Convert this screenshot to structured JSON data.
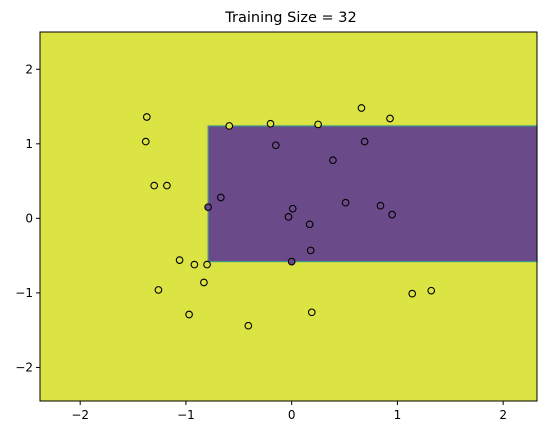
{
  "chart_data": {
    "type": "scatter",
    "title": "Training Size = 32",
    "xlabel": "",
    "ylabel": "",
    "xlim": [
      -2.38,
      2.32
    ],
    "ylim": [
      -2.45,
      2.5
    ],
    "xticks": [
      -2,
      -1,
      0,
      1,
      2
    ],
    "xtick_labels": [
      "−2",
      "−1",
      "0",
      "1",
      "2"
    ],
    "yticks": [
      -2,
      -1,
      0,
      1,
      2
    ],
    "ytick_labels": [
      "−2",
      "−1",
      "0",
      "1",
      "2"
    ],
    "grid": false,
    "legend": "none",
    "colors": {
      "class_0": "#dce443",
      "class_1": "#6b4a8a",
      "boundary": "#3e9a8a",
      "marker_edge": "#000000"
    },
    "decision_region": {
      "class": 1,
      "x_range": [
        -0.79,
        2.32
      ],
      "y_range": [
        -0.58,
        1.24
      ]
    },
    "background_class": 0,
    "series": [
      {
        "class": 0,
        "x": [
          -1.37,
          -1.38,
          -1.3,
          -1.18,
          -0.59,
          -0.2,
          0.25,
          0.66,
          0.93,
          -1.06,
          -0.92,
          -0.8,
          -0.83,
          -1.26,
          -0.97,
          -0.41,
          0.19,
          1.14,
          1.32
        ],
        "y": [
          1.36,
          1.03,
          0.44,
          0.44,
          1.24,
          1.27,
          1.26,
          1.48,
          1.34,
          -0.56,
          -0.62,
          -0.62,
          -0.86,
          -0.96,
          -1.29,
          -1.44,
          -1.26,
          -1.01,
          -0.97
        ]
      },
      {
        "class": 1,
        "x": [
          -0.67,
          -0.79,
          -0.15,
          0.39,
          0.69,
          -0.03,
          0.01,
          0.17,
          0.51,
          0.84,
          0.95,
          0.18,
          0.0
        ],
        "y": [
          0.28,
          0.15,
          0.98,
          0.78,
          1.03,
          0.02,
          0.13,
          -0.08,
          0.21,
          0.17,
          0.05,
          -0.43,
          -0.58
        ]
      }
    ]
  }
}
